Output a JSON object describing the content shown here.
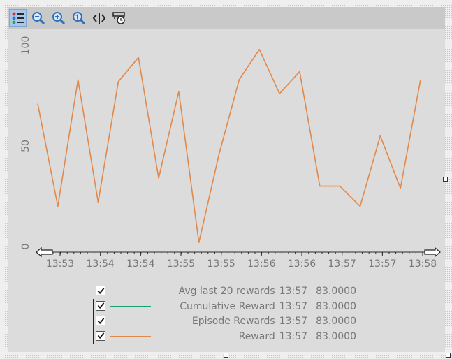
{
  "toolbar": {
    "buttons": [
      {
        "name": "legend-toggle-button",
        "icon": "legend-list-icon",
        "active": true
      },
      {
        "name": "zoom-out-button",
        "icon": "zoom-out-icon"
      },
      {
        "name": "zoom-in-button",
        "icon": "zoom-in-icon"
      },
      {
        "name": "zoom-reset-button",
        "icon": "zoom-1to1-icon"
      },
      {
        "name": "fit-width-button",
        "icon": "fit-horizontal-icon"
      },
      {
        "name": "time-window-button",
        "icon": "time-window-icon"
      }
    ]
  },
  "colors": {
    "plot_bg": "#dcdcdc",
    "toolbar_bg": "#c9c9c9",
    "axis_text": "#777777",
    "series": [
      "#3a3f8f",
      "#1a9f6e",
      "#6ec9e6",
      "#e0894a"
    ]
  },
  "chart_data": {
    "type": "line",
    "title": "",
    "xlabel": "",
    "ylabel": "",
    "ylim": [
      0,
      100
    ],
    "yticks": [
      "0",
      "50",
      "100"
    ],
    "xticks": [
      "13:53",
      "13:54",
      "13:54",
      "13:55",
      "13:55",
      "13:56",
      "13:56",
      "13:57",
      "13:57",
      "13:58"
    ],
    "grid": false,
    "legend_position": "bottom",
    "x_scroll_left_icon": "arrow-left-icon",
    "x_scroll_right_icon": "arrow-right-icon",
    "series": [
      {
        "name": "Avg last 20 rewards",
        "visible_line": false,
        "values": []
      },
      {
        "name": "Cumulative Reward",
        "visible_line": false,
        "values": []
      },
      {
        "name": "Episode Rewards",
        "visible_line": false,
        "values": []
      },
      {
        "name": "Reward",
        "visible_line": true,
        "values": [
          71,
          20,
          83,
          22,
          82,
          94,
          34,
          77,
          2,
          46,
          83,
          98,
          76,
          87,
          30,
          30,
          20,
          55,
          29,
          83
        ]
      }
    ]
  },
  "legend": {
    "items": [
      {
        "label": "Avg last 20 rewards",
        "time": "13:57",
        "value": "83.0000",
        "checked": true
      },
      {
        "label": "Cumulative Reward",
        "time": "13:57",
        "value": "83.0000",
        "checked": true
      },
      {
        "label": "Episode Rewards",
        "time": "13:57",
        "value": "83.0000",
        "checked": true
      },
      {
        "label": "Reward",
        "time": "13:57",
        "value": "83.0000",
        "checked": true
      }
    ]
  }
}
